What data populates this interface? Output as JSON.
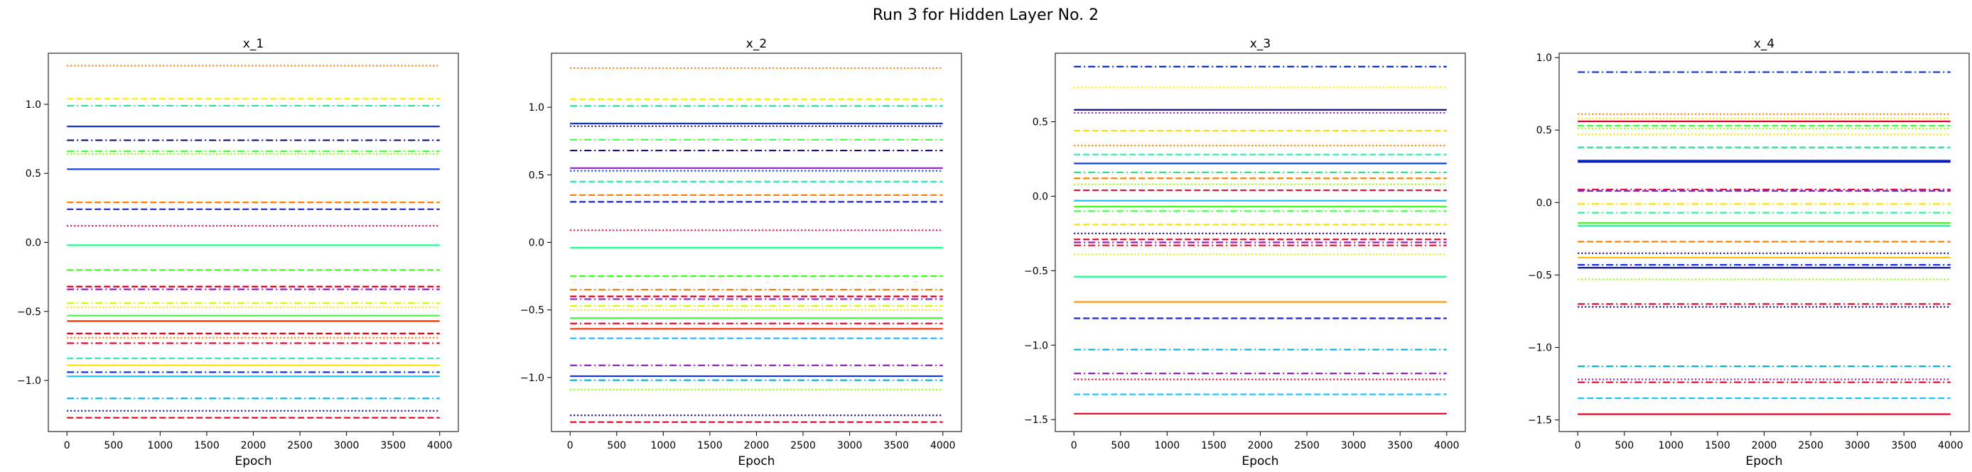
{
  "figure": {
    "suptitle": "Run 3 for Hidden Layer No. 2"
  },
  "chart_data": [
    {
      "type": "line",
      "title": "x_1",
      "xlabel": "Epoch",
      "ylabel": "",
      "xlim": [
        -200,
        4200
      ],
      "ylim": [
        -1.37,
        1.37
      ],
      "xticks": [
        0,
        500,
        1000,
        1500,
        2000,
        2500,
        3000,
        3500,
        4000
      ],
      "yticks": [
        -1.0,
        -0.5,
        0.0,
        0.5,
        1.0
      ],
      "ytick_labels": [
        "−1.0",
        "−0.5",
        "0.0",
        "0.5",
        "1.0"
      ],
      "grid": false,
      "x_range": [
        0,
        4000
      ],
      "series": [
        {
          "value": 1.28,
          "color": "#ff8000",
          "dash": "dotted"
        },
        {
          "value": 1.04,
          "color": "#ffee00",
          "dash": "dashed"
        },
        {
          "value": 0.99,
          "color": "#30e090",
          "dash": "dashdot"
        },
        {
          "value": 0.84,
          "color": "#1030d0",
          "dash": "solid"
        },
        {
          "value": 0.74,
          "color": "#101080",
          "dash": "dashdot"
        },
        {
          "value": 0.66,
          "color": "#40ff40",
          "dash": "dashdot"
        },
        {
          "value": 0.64,
          "color": "#90ff00",
          "dash": "dotted"
        },
        {
          "value": 0.53,
          "color": "#1040ff",
          "dash": "solid"
        },
        {
          "value": 0.29,
          "color": "#ff8000",
          "dash": "dashed"
        },
        {
          "value": 0.24,
          "color": "#2020d0",
          "dash": "dashed"
        },
        {
          "value": 0.12,
          "color": "#e01040",
          "dash": "dotted"
        },
        {
          "value": -0.02,
          "color": "#20ff90",
          "dash": "solid"
        },
        {
          "value": -0.2,
          "color": "#40ff20",
          "dash": "dashed"
        },
        {
          "value": -0.32,
          "color": "#e00020",
          "dash": "dashed"
        },
        {
          "value": -0.34,
          "color": "#9020c0",
          "dash": "dashdot"
        },
        {
          "value": -0.44,
          "color": "#d0ff00",
          "dash": "dashdot"
        },
        {
          "value": -0.47,
          "color": "#ffe000",
          "dash": "dotted"
        },
        {
          "value": -0.53,
          "color": "#40ff40",
          "dash": "solid"
        },
        {
          "value": -0.57,
          "color": "#ff3000",
          "dash": "solid"
        },
        {
          "value": -0.66,
          "color": "#e00020",
          "dash": "dashed"
        },
        {
          "value": -0.69,
          "color": "#ff8000",
          "dash": "dotted"
        },
        {
          "value": -0.73,
          "color": "#e01030",
          "dash": "dashdot"
        },
        {
          "value": -0.84,
          "color": "#30f0a0",
          "dash": "dashed"
        },
        {
          "value": -0.89,
          "color": "#ffe000",
          "dash": "solid"
        },
        {
          "value": -0.94,
          "color": "#1030ff",
          "dash": "dashdot"
        },
        {
          "value": -0.97,
          "color": "#20c0ff",
          "dash": "solid"
        },
        {
          "value": -1.13,
          "color": "#00b0e0",
          "dash": "dashdot"
        },
        {
          "value": -1.22,
          "color": "#101080",
          "dash": "dotted"
        },
        {
          "value": -1.27,
          "color": "#e00020",
          "dash": "dashed"
        }
      ]
    },
    {
      "type": "line",
      "title": "x_2",
      "xlabel": "Epoch",
      "ylabel": "",
      "xlim": [
        -200,
        4200
      ],
      "ylim": [
        -1.4,
        1.4
      ],
      "xticks": [
        0,
        500,
        1000,
        1500,
        2000,
        2500,
        3000,
        3500,
        4000
      ],
      "yticks": [
        -1.0,
        -0.5,
        0.0,
        0.5,
        1.0
      ],
      "ytick_labels": [
        "−1.0",
        "−0.5",
        "0.0",
        "0.5",
        "1.0"
      ],
      "grid": false,
      "x_range": [
        0,
        4000
      ],
      "series": [
        {
          "value": 1.29,
          "color": "#ff8000",
          "dash": "dotted"
        },
        {
          "value": 1.06,
          "color": "#ffee00",
          "dash": "dashed"
        },
        {
          "value": 1.01,
          "color": "#30e090",
          "dash": "dashdot"
        },
        {
          "value": 0.88,
          "color": "#1030d0",
          "dash": "solid"
        },
        {
          "value": 0.86,
          "color": "#101080",
          "dash": "dotted"
        },
        {
          "value": 0.76,
          "color": "#40ff40",
          "dash": "dashdot"
        },
        {
          "value": 0.68,
          "color": "#101080",
          "dash": "dashdot"
        },
        {
          "value": 0.55,
          "color": "#9020c0",
          "dash": "solid"
        },
        {
          "value": 0.53,
          "color": "#1040ff",
          "dash": "dotted"
        },
        {
          "value": 0.45,
          "color": "#30f0a0",
          "dash": "dashed"
        },
        {
          "value": 0.35,
          "color": "#ff8000",
          "dash": "dashed"
        },
        {
          "value": 0.3,
          "color": "#2020d0",
          "dash": "dashed"
        },
        {
          "value": 0.09,
          "color": "#e01040",
          "dash": "dotted"
        },
        {
          "value": -0.04,
          "color": "#20ff90",
          "dash": "solid"
        },
        {
          "value": -0.25,
          "color": "#40ff20",
          "dash": "dashed"
        },
        {
          "value": -0.35,
          "color": "#ff8000",
          "dash": "dashdot"
        },
        {
          "value": -0.4,
          "color": "#e00020",
          "dash": "dashed"
        },
        {
          "value": -0.42,
          "color": "#9020c0",
          "dash": "dashdot"
        },
        {
          "value": -0.47,
          "color": "#d0ff00",
          "dash": "dashdot"
        },
        {
          "value": -0.5,
          "color": "#ffe000",
          "dash": "dotted"
        },
        {
          "value": -0.56,
          "color": "#40ff40",
          "dash": "solid"
        },
        {
          "value": -0.6,
          "color": "#e01030",
          "dash": "dashdot"
        },
        {
          "value": -0.64,
          "color": "#ff3000",
          "dash": "solid"
        },
        {
          "value": -0.71,
          "color": "#20c0ff",
          "dash": "dashed"
        },
        {
          "value": -0.91,
          "color": "#9020c0",
          "dash": "dashdot"
        },
        {
          "value": -0.99,
          "color": "#1030ff",
          "dash": "solid"
        },
        {
          "value": -1.02,
          "color": "#00b0e0",
          "dash": "dashdot"
        },
        {
          "value": -1.09,
          "color": "#90ff00",
          "dash": "dotted"
        },
        {
          "value": -1.28,
          "color": "#101080",
          "dash": "dotted"
        },
        {
          "value": -1.33,
          "color": "#e00020",
          "dash": "dashed"
        }
      ]
    },
    {
      "type": "line",
      "title": "x_3",
      "xlabel": "Epoch",
      "ylabel": "",
      "xlim": [
        -200,
        4200
      ],
      "ylim": [
        -1.58,
        0.96
      ],
      "xticks": [
        0,
        500,
        1000,
        1500,
        2000,
        2500,
        3000,
        3500,
        4000
      ],
      "yticks": [
        -1.5,
        -1.0,
        -0.5,
        0.0,
        0.5
      ],
      "ytick_labels": [
        "−1.5",
        "−1.0",
        "−0.5",
        "0.0",
        "0.5"
      ],
      "grid": false,
      "x_range": [
        0,
        4000
      ],
      "series": [
        {
          "value": 0.87,
          "color": "#1030d0",
          "dash": "dashdot"
        },
        {
          "value": 0.73,
          "color": "#ffee00",
          "dash": "dotted"
        },
        {
          "value": 0.58,
          "color": "#101080",
          "dash": "solid"
        },
        {
          "value": 0.56,
          "color": "#9020c0",
          "dash": "dotted"
        },
        {
          "value": 0.44,
          "color": "#ffe000",
          "dash": "dashed"
        },
        {
          "value": 0.34,
          "color": "#ff8000",
          "dash": "dotted"
        },
        {
          "value": 0.28,
          "color": "#30f0a0",
          "dash": "dashed"
        },
        {
          "value": 0.22,
          "color": "#1040ff",
          "dash": "solid"
        },
        {
          "value": 0.16,
          "color": "#30e090",
          "dash": "dashdot"
        },
        {
          "value": 0.12,
          "color": "#ff8000",
          "dash": "dashed"
        },
        {
          "value": 0.08,
          "color": "#90ff00",
          "dash": "dotted"
        },
        {
          "value": 0.04,
          "color": "#e01040",
          "dash": "dashed"
        },
        {
          "value": -0.03,
          "color": "#20c0ff",
          "dash": "solid"
        },
        {
          "value": -0.07,
          "color": "#40ff20",
          "dash": "solid"
        },
        {
          "value": -0.1,
          "color": "#40ff40",
          "dash": "dashdot"
        },
        {
          "value": -0.19,
          "color": "#ffe000",
          "dash": "dashed"
        },
        {
          "value": -0.25,
          "color": "#101080",
          "dash": "dotted"
        },
        {
          "value": -0.29,
          "color": "#e00020",
          "dash": "dashed"
        },
        {
          "value": -0.31,
          "color": "#9020c0",
          "dash": "dashdot"
        },
        {
          "value": -0.33,
          "color": "#e01030",
          "dash": "dashdot"
        },
        {
          "value": -0.39,
          "color": "#d0ff00",
          "dash": "dotted"
        },
        {
          "value": -0.54,
          "color": "#20ff90",
          "dash": "solid"
        },
        {
          "value": -0.71,
          "color": "#ff9000",
          "dash": "solid"
        },
        {
          "value": -0.82,
          "color": "#2020d0",
          "dash": "dashed"
        },
        {
          "value": -1.03,
          "color": "#00b0e0",
          "dash": "dashdot"
        },
        {
          "value": -1.19,
          "color": "#9020c0",
          "dash": "dashdot"
        },
        {
          "value": -1.23,
          "color": "#e00020",
          "dash": "dotted"
        },
        {
          "value": -1.33,
          "color": "#20c0ff",
          "dash": "dashed"
        },
        {
          "value": -1.46,
          "color": "#e00020",
          "dash": "solid"
        }
      ]
    },
    {
      "type": "line",
      "title": "x_4",
      "xlabel": "Epoch",
      "ylabel": "",
      "xlim": [
        -200,
        4200
      ],
      "ylim": [
        -1.58,
        1.03
      ],
      "xticks": [
        0,
        500,
        1000,
        1500,
        2000,
        2500,
        3000,
        3500,
        4000
      ],
      "yticks": [
        -1.5,
        -1.0,
        -0.5,
        0.0,
        0.5,
        1.0
      ],
      "ytick_labels": [
        "−1.5",
        "−1.0",
        "−0.5",
        "0.0",
        "0.5",
        "1.0"
      ],
      "grid": false,
      "x_range": [
        0,
        4000
      ],
      "series": [
        {
          "value": 0.9,
          "color": "#1030d0",
          "dash": "dashdot"
        },
        {
          "value": 0.61,
          "color": "#ff8000",
          "dash": "dotted"
        },
        {
          "value": 0.58,
          "color": "#ffee00",
          "dash": "dotted"
        },
        {
          "value": 0.56,
          "color": "#e00020",
          "dash": "solid"
        },
        {
          "value": 0.53,
          "color": "#40ff40",
          "dash": "dashed"
        },
        {
          "value": 0.51,
          "color": "#90ff00",
          "dash": "dotted"
        },
        {
          "value": 0.47,
          "color": "#ffe000",
          "dash": "dotted"
        },
        {
          "value": 0.38,
          "color": "#30e090",
          "dash": "dashed"
        },
        {
          "value": 0.29,
          "color": "#1040ff",
          "dash": "solid"
        },
        {
          "value": 0.28,
          "color": "#101080",
          "dash": "solid"
        },
        {
          "value": 0.09,
          "color": "#e01040",
          "dash": "dashdot"
        },
        {
          "value": 0.08,
          "color": "#9020c0",
          "dash": "dashed"
        },
        {
          "value": -0.01,
          "color": "#ffe000",
          "dash": "dashdot"
        },
        {
          "value": -0.07,
          "color": "#30f0a0",
          "dash": "dashdot"
        },
        {
          "value": -0.14,
          "color": "#40ff20",
          "dash": "solid"
        },
        {
          "value": -0.16,
          "color": "#20ff90",
          "dash": "solid"
        },
        {
          "value": -0.27,
          "color": "#ff8000",
          "dash": "dashed"
        },
        {
          "value": -0.35,
          "color": "#101080",
          "dash": "dotted"
        },
        {
          "value": -0.38,
          "color": "#ffc000",
          "dash": "solid"
        },
        {
          "value": -0.43,
          "color": "#1030ff",
          "dash": "dashdot"
        },
        {
          "value": -0.45,
          "color": "#101080",
          "dash": "solid"
        },
        {
          "value": -0.53,
          "color": "#90ff00",
          "dash": "dotted"
        },
        {
          "value": -0.7,
          "color": "#e00020",
          "dash": "dashdot"
        },
        {
          "value": -0.72,
          "color": "#101080",
          "dash": "dotted"
        },
        {
          "value": -1.13,
          "color": "#00b0e0",
          "dash": "dashdot"
        },
        {
          "value": -1.22,
          "color": "#9020c0",
          "dash": "dotted"
        },
        {
          "value": -1.24,
          "color": "#e00020",
          "dash": "dashdot"
        },
        {
          "value": -1.35,
          "color": "#20c0ff",
          "dash": "dashed"
        },
        {
          "value": -1.46,
          "color": "#e00020",
          "dash": "solid"
        }
      ]
    }
  ]
}
